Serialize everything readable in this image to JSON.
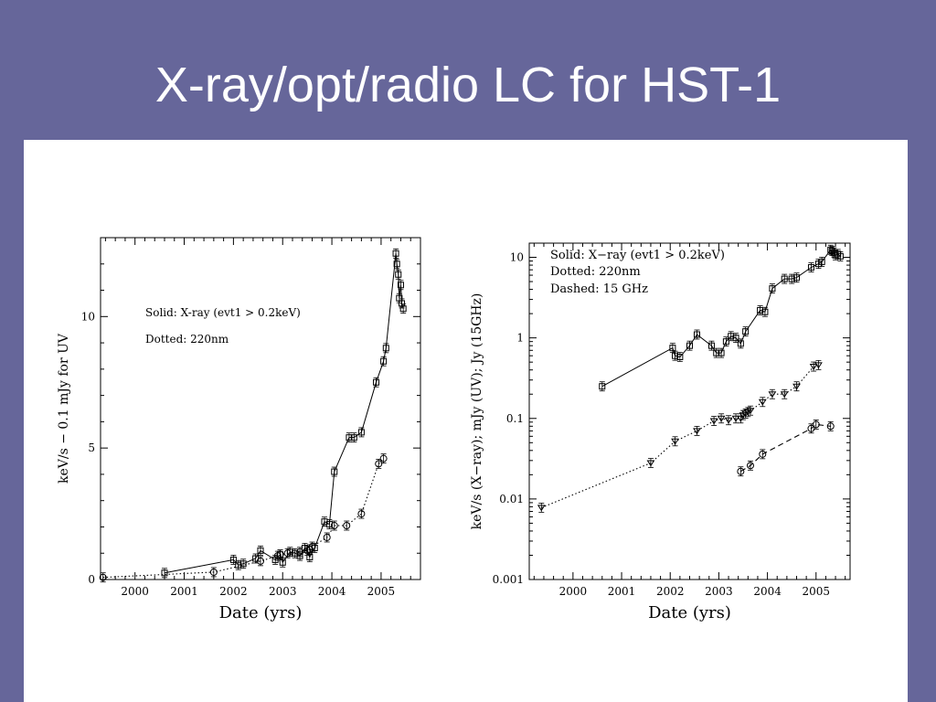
{
  "slide": {
    "title": "X-ray/opt/radio LC for HST-1"
  },
  "chart_data": [
    {
      "type": "line",
      "title": "",
      "xlabel": "Date (yrs)",
      "ylabel": "keV/s  −  0.1 mJy for UV",
      "xlim": [
        1999.3,
        2005.8
      ],
      "ylim": [
        0,
        13
      ],
      "log_y": false,
      "x_ticks": [
        2000,
        2001,
        2002,
        2003,
        2004,
        2005
      ],
      "x_tick_labels": [
        "2000",
        "2001",
        "2002",
        "2003",
        "2004",
        "2005"
      ],
      "y_ticks": [
        0,
        5,
        10
      ],
      "y_tick_labels": [
        "0",
        "5",
        "10"
      ],
      "annotations": [
        "Solid: X-ray (evt1 > 0.2keV)",
        "Dotted: 220nm"
      ],
      "series": [
        {
          "name": "",
          "style": "solid",
          "marker": "square",
          "x": [
            2000.6,
            2002.0,
            2002.1,
            2002.2,
            2002.45,
            2002.55,
            2002.85,
            2002.95,
            2003.0,
            2003.15,
            2003.25,
            2003.35,
            2003.45,
            2003.55,
            2003.65,
            2003.85,
            2003.95,
            2004.05,
            2004.35,
            2004.45,
            2004.6,
            2004.9,
            2005.05,
            2005.1,
            2005.3,
            2005.32,
            2005.35,
            2005.37,
            2005.4,
            2005.42,
            2005.45
          ],
          "y": [
            0.25,
            0.75,
            0.55,
            0.6,
            0.8,
            1.1,
            0.75,
            0.95,
            0.65,
            1.05,
            1.0,
            0.9,
            1.2,
            0.85,
            1.2,
            2.2,
            2.1,
            4.1,
            5.4,
            5.4,
            5.6,
            7.5,
            8.3,
            8.8,
            12.4,
            12.0,
            11.6,
            10.7,
            11.2,
            10.5,
            10.3
          ]
        },
        {
          "name": "",
          "style": "dotted",
          "marker": "circle",
          "x": [
            1999.35,
            2001.6,
            2002.55,
            2002.9,
            2002.95,
            2003.1,
            2003.35,
            2003.5,
            2003.55,
            2003.6,
            2003.9,
            2004.05,
            2004.3,
            2004.6,
            2004.95,
            2005.05
          ],
          "y": [
            0.08,
            0.28,
            0.7,
            0.9,
            0.95,
            1.0,
            1.05,
            1.1,
            1.15,
            1.25,
            1.6,
            2.05,
            2.05,
            2.5,
            4.4,
            4.6
          ]
        }
      ]
    },
    {
      "type": "line",
      "title": "",
      "xlabel": "Date (yrs)",
      "ylabel": "keV/s (X−ray); mJy (UV); Jy (15GHz)",
      "xlim": [
        1999.1,
        2005.7
      ],
      "ylim": [
        0.001,
        15
      ],
      "log_y": true,
      "x_ticks": [
        2000,
        2001,
        2002,
        2003,
        2004,
        2005
      ],
      "x_tick_labels": [
        "2000",
        "2001",
        "2002",
        "2003",
        "2004",
        "2005"
      ],
      "y_ticks": [
        0.001,
        0.01,
        0.1,
        1,
        10
      ],
      "y_tick_labels": [
        "0.001",
        "0.01",
        "0.1",
        "1",
        "10"
      ],
      "annotations": [
        "Solid: X−ray (evt1 > 0.2keV)",
        "Dotted: 220nm",
        "Dashed: 15 GHz"
      ],
      "series": [
        {
          "name": "",
          "style": "solid",
          "marker": "square",
          "x": [
            2000.6,
            2002.05,
            2002.1,
            2002.2,
            2002.4,
            2002.55,
            2002.85,
            2002.95,
            2003.05,
            2003.15,
            2003.25,
            2003.35,
            2003.45,
            2003.55,
            2003.85,
            2003.95,
            2004.1,
            2004.35,
            2004.5,
            2004.6,
            2004.9,
            2005.05,
            2005.12,
            2005.3,
            2005.33,
            2005.37,
            2005.4,
            2005.45,
            2005.5
          ],
          "y": [
            0.25,
            0.75,
            0.6,
            0.58,
            0.8,
            1.1,
            0.8,
            0.65,
            0.65,
            0.9,
            1.05,
            1.0,
            0.85,
            1.2,
            2.2,
            2.1,
            4.1,
            5.4,
            5.4,
            5.6,
            7.5,
            8.3,
            8.8,
            12.4,
            12.0,
            11.5,
            10.6,
            11.0,
            10.3
          ]
        },
        {
          "name": "",
          "style": "dotted",
          "marker": "triangle",
          "x": [
            1999.35,
            2001.6,
            2002.1,
            2002.55,
            2002.9,
            2003.05,
            2003.2,
            2003.35,
            2003.45,
            2003.5,
            2003.55,
            2003.6,
            2003.65,
            2003.9,
            2004.1,
            2004.35,
            2004.6,
            2004.95,
            2005.05
          ],
          "y": [
            0.0078,
            0.028,
            0.052,
            0.07,
            0.093,
            0.1,
            0.095,
            0.1,
            0.1,
            0.11,
            0.115,
            0.12,
            0.125,
            0.16,
            0.2,
            0.2,
            0.25,
            0.44,
            0.46
          ]
        },
        {
          "name": "",
          "style": "dashed",
          "marker": "circle",
          "x": [
            2003.45,
            2003.65,
            2003.9,
            2004.9,
            2005.0,
            2005.3
          ],
          "y": [
            0.022,
            0.026,
            0.036,
            0.075,
            0.084,
            0.08
          ]
        }
      ]
    }
  ]
}
